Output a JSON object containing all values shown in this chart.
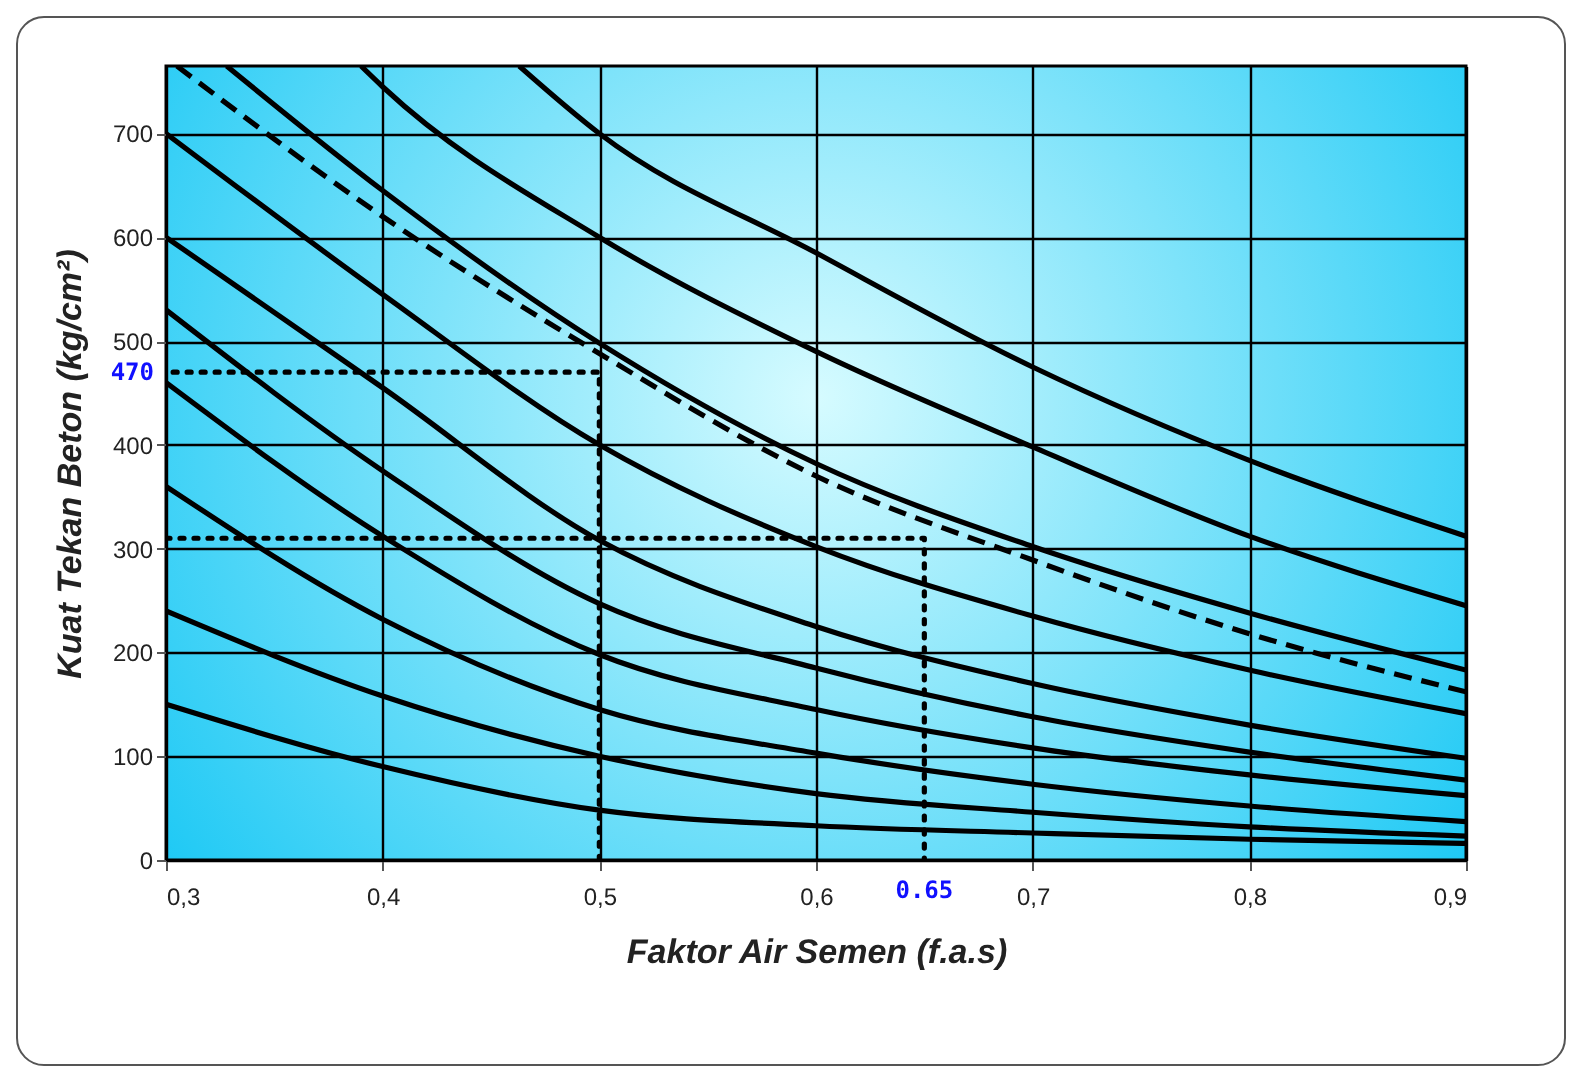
{
  "chart_data": {
    "type": "line",
    "xlabel": "Faktor Air Semen (f.a.s)",
    "ylabel": "Kuat Tekan Beton (kg/cm²)",
    "xlim": [
      0.3,
      0.9
    ],
    "ylim": [
      0,
      765
    ],
    "xticks": [
      {
        "value": 0.3,
        "label": "0,3"
      },
      {
        "value": 0.4,
        "label": "0,4"
      },
      {
        "value": 0.5,
        "label": "0,5"
      },
      {
        "value": 0.6,
        "label": "0,6"
      },
      {
        "value": 0.7,
        "label": "0,7"
      },
      {
        "value": 0.8,
        "label": "0,8"
      },
      {
        "value": 0.9,
        "label": "0,9"
      }
    ],
    "yticks": [
      0,
      100,
      200,
      300,
      400,
      500,
      600,
      700
    ],
    "grid": true,
    "line_style": "solid",
    "series": [
      {
        "color": "#000000",
        "x": [
          0.3,
          0.4,
          0.5,
          0.6,
          0.7,
          0.8,
          0.9
        ],
        "values": [
          150,
          90,
          48,
          33,
          26,
          20,
          16
        ]
      },
      {
        "color": "#000000",
        "x": [
          0.3,
          0.4,
          0.5,
          0.6,
          0.7,
          0.8,
          0.9
        ],
        "values": [
          240,
          158,
          100,
          64,
          46,
          32,
          23
        ]
      },
      {
        "color": "#000000",
        "x": [
          0.3,
          0.4,
          0.5,
          0.6,
          0.7,
          0.8,
          0.9
        ],
        "values": [
          360,
          232,
          145,
          103,
          73,
          52,
          37
        ]
      },
      {
        "color": "#000000",
        "x": [
          0.3,
          0.4,
          0.5,
          0.6,
          0.7,
          0.8,
          0.9
        ],
        "values": [
          460,
          312,
          198,
          145,
          108,
          82,
          62
        ]
      },
      {
        "color": "#000000",
        "x": [
          0.3,
          0.4,
          0.5,
          0.6,
          0.7,
          0.8,
          0.9
        ],
        "values": [
          530,
          375,
          247,
          185,
          138,
          104,
          77
        ]
      },
      {
        "color": "#000000",
        "x": [
          0.3,
          0.4,
          0.5,
          0.6,
          0.7,
          0.8,
          0.9
        ],
        "values": [
          600,
          455,
          308,
          225,
          170,
          130,
          98
        ]
      },
      {
        "color": "#000000",
        "x": [
          0.3,
          0.4,
          0.5,
          0.6,
          0.7,
          0.8,
          0.9
        ],
        "values": [
          700,
          545,
          400,
          302,
          235,
          183,
          141
        ]
      },
      {
        "color": "#000000",
        "x": [
          0.328,
          0.4,
          0.5,
          0.6,
          0.7,
          0.8,
          0.9
        ],
        "values": [
          765,
          645,
          498,
          382,
          302,
          238,
          183
        ]
      },
      {
        "color": "#000000",
        "x": [
          0.39,
          0.4,
          0.5,
          0.6,
          0.7,
          0.8,
          0.9
        ],
        "values": [
          765,
          745,
          600,
          490,
          398,
          312,
          245
        ]
      },
      {
        "color": "#000000",
        "x": [
          0.463,
          0.5,
          0.6,
          0.7,
          0.8,
          0.9
        ],
        "values": [
          765,
          700,
          585,
          475,
          385,
          312
        ]
      },
      {
        "color": "#000000",
        "line_style": "dashed",
        "x": [
          0.305,
          0.4,
          0.5,
          0.6,
          0.7,
          0.8,
          0.9
        ],
        "values": [
          765,
          620,
          488,
          370,
          289,
          218,
          162
        ]
      },
      {
        "color": "#000000",
        "line_style": "dotted",
        "x": [
          0.5,
          0.5,
          0.3
        ],
        "values": [
          0,
          470,
          470
        ]
      },
      {
        "color": "#000000",
        "line_style": "dotted",
        "x": [
          0.3,
          0.65,
          0.65
        ],
        "values": [
          310,
          310,
          0
        ]
      }
    ],
    "annotations": [
      {
        "text": "470",
        "x": 0.3,
        "y": 470
      },
      {
        "text": "0.65",
        "x": 0.65,
        "y": 0
      }
    ]
  }
}
